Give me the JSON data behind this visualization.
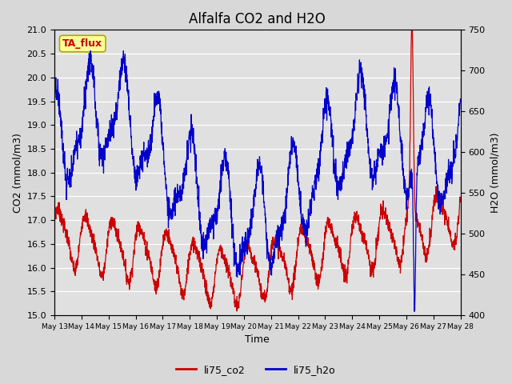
{
  "title": "Alfalfa CO2 and H2O",
  "xlabel": "Time",
  "ylabel_left": "CO2 (mmol/m3)",
  "ylabel_right": "H2O (mmol/m3)",
  "ylim_left": [
    15.0,
    21.0
  ],
  "ylim_right": [
    400,
    750
  ],
  "yticks_left": [
    15.0,
    15.5,
    16.0,
    16.5,
    17.0,
    17.5,
    18.0,
    18.5,
    19.0,
    19.5,
    20.0,
    20.5,
    21.0
  ],
  "yticks_right": [
    400,
    450,
    500,
    550,
    600,
    650,
    700,
    750
  ],
  "xtick_labels": [
    "May 13",
    "May 14",
    "May 15",
    "May 16",
    "May 17",
    "May 18",
    "May 19",
    "May 20",
    "May 21",
    "May 22",
    "May 23",
    "May 24",
    "May 25",
    "May 26",
    "May 27",
    "May 28"
  ],
  "legend_labels": [
    "li75_co2",
    "li75_h2o"
  ],
  "legend_colors": [
    "#cc0000",
    "#0000cc"
  ],
  "annotation_text": "TA_flux",
  "annotation_color": "#cc0000",
  "annotation_bg": "#ffff99",
  "annotation_edge": "#aaaa00",
  "line_co2_color": "#cc0000",
  "line_h2o_color": "#0000cc",
  "background_color": "#e0e0e0",
  "grid_color": "#ffffff",
  "title_fontsize": 12,
  "label_fontsize": 9,
  "tick_fontsize": 8
}
